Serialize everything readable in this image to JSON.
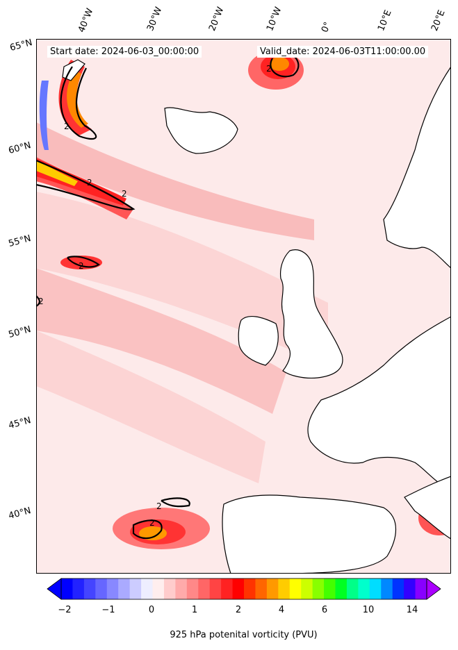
{
  "header": {
    "start_date": "Start date: 2024-06-03_00:00:00",
    "valid_date": "Valid_date: 2024-06-03T11:00:00.00"
  },
  "axes": {
    "lon_labels": [
      "40°W",
      "30°W",
      "20°W",
      "10°W",
      "0°",
      "10°E",
      "20°E"
    ],
    "lat_labels": [
      "65°N",
      "60°N",
      "55°N",
      "50°N",
      "45°N",
      "40°N"
    ]
  },
  "contour_labels": [
    "2",
    "2",
    "2",
    "2",
    "2",
    "2",
    "2",
    "2"
  ],
  "colorbar": {
    "ticks": [
      "−2",
      "−1",
      "0",
      "1",
      "2",
      "4",
      "6",
      "10",
      "14"
    ],
    "label": "925 hPa potenital vorticity (PVU)",
    "colors": [
      "#0000ff",
      "#2222ff",
      "#4444ff",
      "#6666ff",
      "#8888ff",
      "#aaaaff",
      "#ccccff",
      "#eeeeff",
      "#ffeeee",
      "#ffcccc",
      "#ffaaaa",
      "#ff8888",
      "#ff6666",
      "#ff4444",
      "#ff2222",
      "#ff0000",
      "#ff3300",
      "#ff6600",
      "#ff9900",
      "#ffcc00",
      "#ffff00",
      "#ccff00",
      "#88ff00",
      "#44ff00",
      "#00ff22",
      "#00ff88",
      "#00ffcc",
      "#00ddff",
      "#0088ff",
      "#0033ff",
      "#3300ff",
      "#8800ff"
    ],
    "extend_low_color": "#0000ff",
    "extend_high_color": "#aa00ff"
  },
  "colors": {
    "land": "#ffffff",
    "background_field": "#fdeaea",
    "coast": "#000000"
  }
}
